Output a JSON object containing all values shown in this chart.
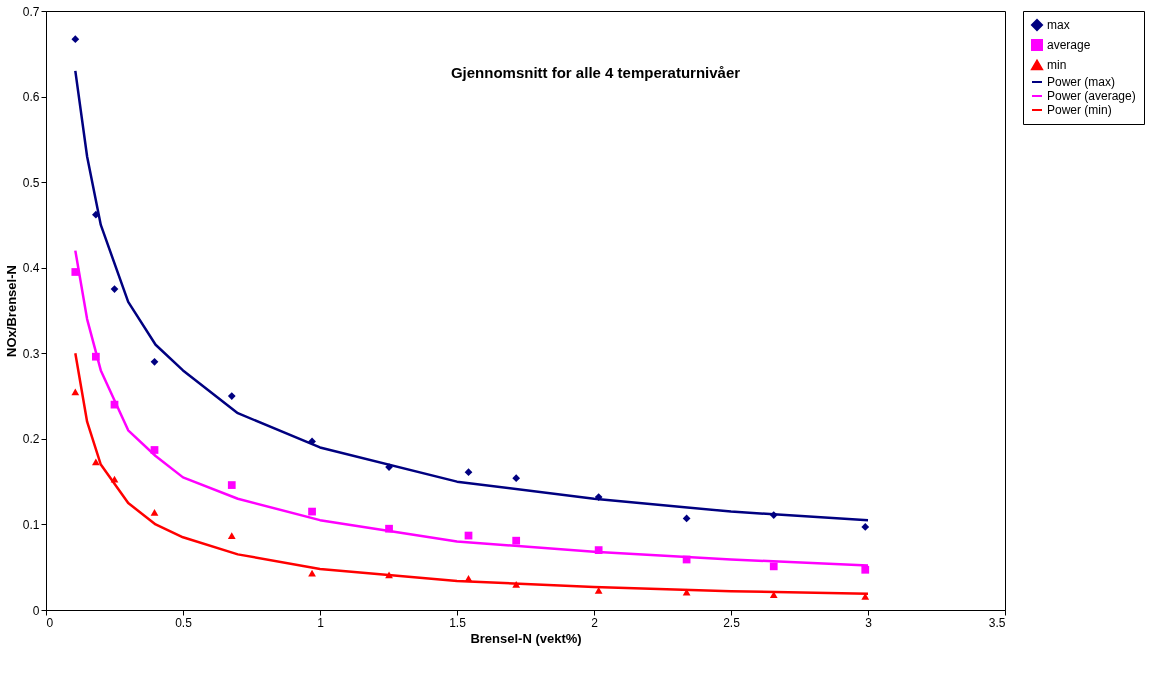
{
  "chart_data": {
    "type": "scatter",
    "title": "Gjennomsnitt for alle 4 temperaturnivåer",
    "xlabel": "Brensel-N (vekt%)",
    "ylabel": "NOx/Brensel-N",
    "xlim": [
      0,
      3.5
    ],
    "xticks": [
      0,
      0.5,
      1,
      1.5,
      2,
      2.5,
      3,
      3.5
    ],
    "ylim": [
      0,
      0.7
    ],
    "yticks": [
      0,
      0.1,
      0.2,
      0.3,
      0.4,
      0.5,
      0.6,
      0.7
    ],
    "grid": false,
    "legend": "right",
    "x": [
      0.107,
      0.182,
      0.25,
      0.396,
      0.678,
      0.971,
      1.252,
      1.542,
      1.716,
      2.017,
      2.338,
      2.656,
      2.99
    ],
    "series": [
      {
        "name": "max",
        "marker": "diamond",
        "color": "#000080",
        "values": [
          0.667,
          0.462,
          0.375,
          0.29,
          0.25,
          0.197,
          0.167,
          0.161,
          0.154,
          0.132,
          0.107,
          0.111,
          0.097
        ]
      },
      {
        "name": "average",
        "marker": "square",
        "color": "#ff00ff",
        "values": [
          0.395,
          0.296,
          0.24,
          0.187,
          0.146,
          0.115,
          0.095,
          0.087,
          0.081,
          0.07,
          0.059,
          0.051,
          0.047
        ]
      },
      {
        "name": "min",
        "marker": "triangle",
        "color": "#ff0000",
        "values": [
          0.255,
          0.173,
          0.153,
          0.114,
          0.087,
          0.043,
          0.041,
          0.037,
          0.03,
          0.023,
          0.021,
          0.018,
          0.016
        ]
      },
      {
        "name": "Power (max)",
        "type": "line",
        "color": "#000080",
        "x": [
          0.107,
          0.15,
          0.2,
          0.3,
          0.4,
          0.5,
          0.7,
          1.0,
          1.5,
          2.0,
          2.5,
          3.0
        ],
        "values": [
          0.63,
          0.53,
          0.45,
          0.36,
          0.31,
          0.28,
          0.23,
          0.19,
          0.15,
          0.13,
          0.115,
          0.105
        ]
      },
      {
        "name": "Power (average)",
        "type": "line",
        "color": "#ff00ff",
        "x": [
          0.107,
          0.15,
          0.2,
          0.3,
          0.4,
          0.5,
          0.7,
          1.0,
          1.5,
          2.0,
          2.5,
          3.0
        ],
        "values": [
          0.42,
          0.34,
          0.28,
          0.21,
          0.18,
          0.155,
          0.13,
          0.105,
          0.08,
          0.068,
          0.059,
          0.052
        ]
      },
      {
        "name": "Power (min)",
        "type": "line",
        "color": "#ff0000",
        "x": [
          0.107,
          0.15,
          0.2,
          0.3,
          0.4,
          0.5,
          0.7,
          1.0,
          1.5,
          2.0,
          2.5,
          3.0
        ],
        "values": [
          0.3,
          0.22,
          0.17,
          0.125,
          0.1,
          0.085,
          0.065,
          0.048,
          0.034,
          0.027,
          0.022,
          0.019
        ]
      }
    ]
  }
}
